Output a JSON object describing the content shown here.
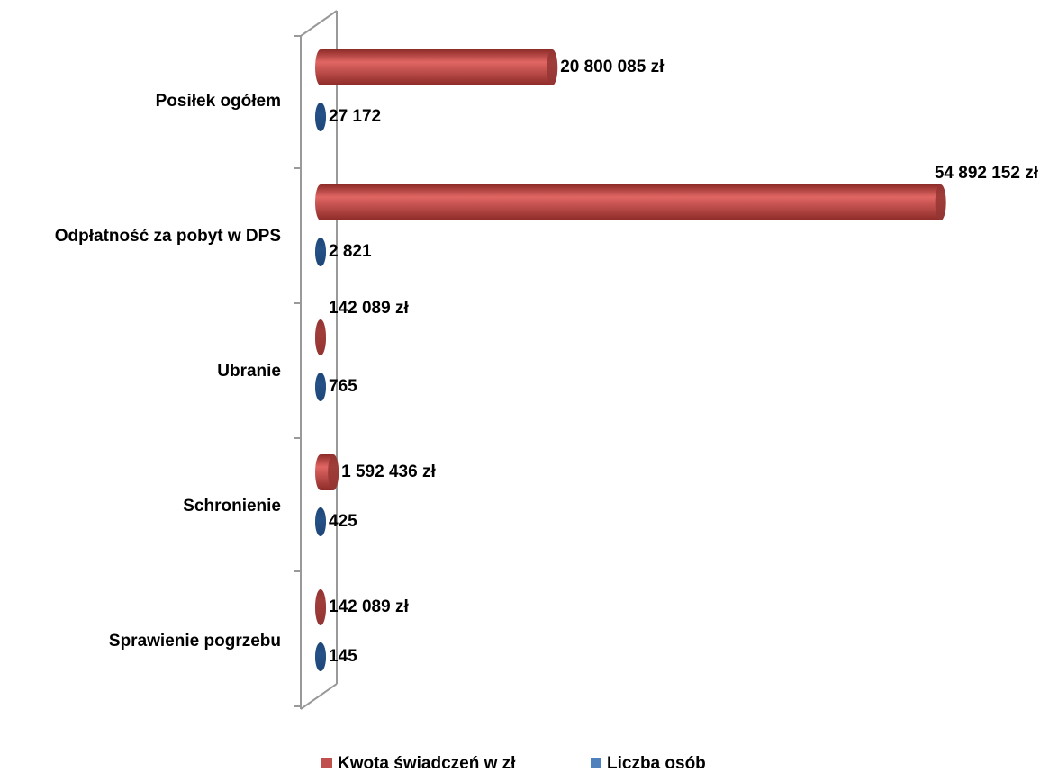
{
  "chart_data": {
    "type": "bar",
    "orientation": "horizontal",
    "categories": [
      "Posiłek ogółem",
      "Odpłatność za pobyt w DPS",
      "Ubranie",
      "Schronienie",
      "Sprawienie pogrzebu"
    ],
    "series": [
      {
        "name": "Kwota świadczeń w zł",
        "color": "#c0504d",
        "values": [
          20800085,
          54892152,
          142089,
          1592436,
          142089
        ],
        "value_labels": [
          "20 800 085 zł",
          "54 892 152 zł",
          "142 089 zł",
          "1 592 436 zł",
          "142 089 zł"
        ]
      },
      {
        "name": "Liczba osób",
        "color": "#4f81bd",
        "values": [
          27172,
          2821,
          765,
          425,
          145
        ],
        "value_labels": [
          "27 172",
          "2 821",
          "765",
          "425",
          "145"
        ]
      }
    ],
    "xlim": [
      0,
      55000000
    ],
    "legend": "bottom"
  }
}
